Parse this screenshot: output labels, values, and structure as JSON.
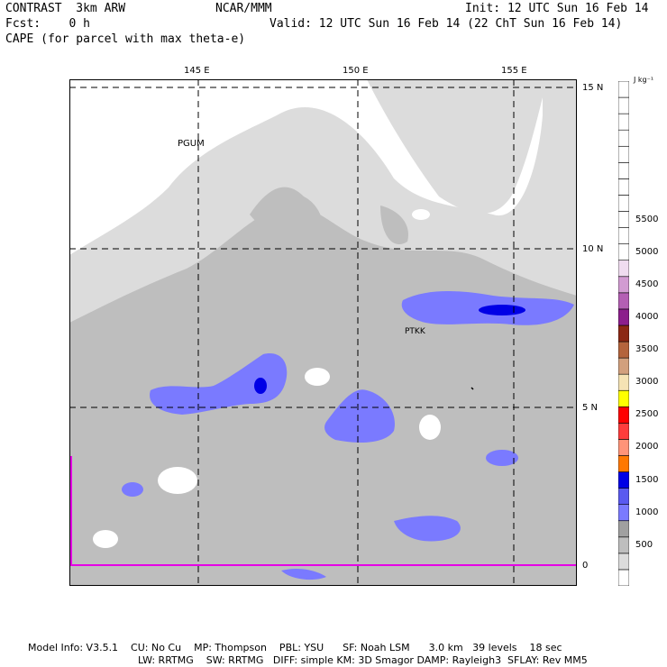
{
  "header": {
    "model": "CONTRAST  3km ARW",
    "org": "NCAR/MMM",
    "init": "Init: 12 UTC Sun 16 Feb 14",
    "fcst": "Fcst:    0 h",
    "valid": "Valid: 12 UTC Sun 16 Feb 14 (22 ChT Sun 16 Feb 14)",
    "field": "CAPE (for parcel with max theta-e)"
  },
  "axes": {
    "lon_labels": [
      "145 E",
      "150 E",
      "155 E"
    ],
    "lat_labels": [
      "15 N",
      "10 N",
      "5 N",
      "0"
    ]
  },
  "stations": [
    "PGUM",
    "PTKK"
  ],
  "legend": {
    "units": "J kg⁻¹",
    "labels": [
      "5500",
      "5000",
      "4500",
      "4000",
      "3500",
      "3000",
      "2500",
      "2000",
      "1500",
      "1000",
      "500"
    ],
    "colors": [
      "#ffffff",
      "#dcdcdc",
      "#bebebe",
      "#a0a0a0",
      "#7a7aff",
      "#5a5af0",
      "#0000e6",
      "#ff7800",
      "#ff9478",
      "#ff3c3c",
      "#ff0000",
      "#ffff00",
      "#f5e3b4",
      "#d2a07d",
      "#b4643c",
      "#8c2814",
      "#8c1e8c",
      "#b45fb4",
      "#d29bd2",
      "#f0dcf0"
    ]
  },
  "footer": {
    "line1": "Model Info: V3.5.1    CU: No Cu    MP: Thompson    PBL: YSU      SF: Noah LSM      3.0 km   39 levels    18 sec",
    "line2": "LW: RRTMG    SW: RRTMG   DIFF: simple KM: 3D Smagor DAMP: Rayleigh3  SFLAY: Rev MM5"
  }
}
